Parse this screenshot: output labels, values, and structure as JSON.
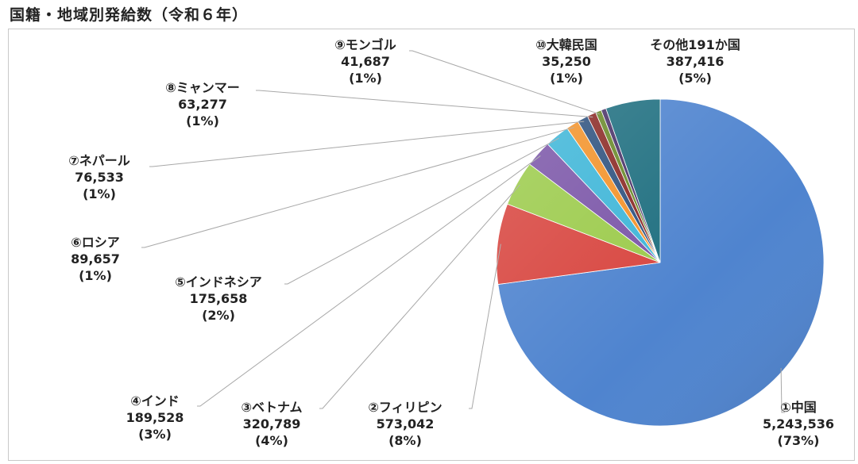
{
  "title": "国籍・地域別発給数（令和６年）",
  "chart_data": {
    "type": "pie",
    "title": "国籍・地域別発給数（令和６年）",
    "start_angle_deg": 0,
    "direction": "clockwise",
    "slices": [
      {
        "label": "①中国",
        "value": 5243536,
        "value_text": "5,243,536",
        "pct_text": "(73%)",
        "color": "#4f84cf"
      },
      {
        "label": "②フィリピン",
        "value": 573042,
        "value_text": "573,042",
        "pct_text": "(8%)",
        "color": "#d84640"
      },
      {
        "label": "③ベトナム",
        "value": 320789,
        "value_text": "320,789",
        "pct_text": "(4%)",
        "color": "#9ccb4c"
      },
      {
        "label": "④インド",
        "value": 189528,
        "value_text": "189,528",
        "pct_text": "(3%)",
        "color": "#7b56a8"
      },
      {
        "label": "⑤インドネシア",
        "value": 175658,
        "value_text": "175,658",
        "pct_text": "(2%)",
        "color": "#3fb6d8"
      },
      {
        "label": "⑥ロシア",
        "value": 89657,
        "value_text": "89,657",
        "pct_text": "(1%)",
        "color": "#f3932b"
      },
      {
        "label": "⑦ネパール",
        "value": 76533,
        "value_text": "76,533",
        "pct_text": "(1%)",
        "color": "#2f527f"
      },
      {
        "label": "⑧ミャンマー",
        "value": 63277,
        "value_text": "63,277",
        "pct_text": "(1%)",
        "color": "#8b2a26"
      },
      {
        "label": "⑨モンゴル",
        "value": 41687,
        "value_text": "41,687",
        "pct_text": "(1%)",
        "color": "#6a8a2a"
      },
      {
        "label": "⑩大韓民国",
        "value": 35250,
        "value_text": "35,250",
        "pct_text": "(1%)",
        "color": "#4a3268"
      },
      {
        "label": "その他191か国",
        "value": 387416,
        "value_text": "387,416",
        "pct_text": "(5%)",
        "color": "#1f6f80"
      }
    ]
  }
}
